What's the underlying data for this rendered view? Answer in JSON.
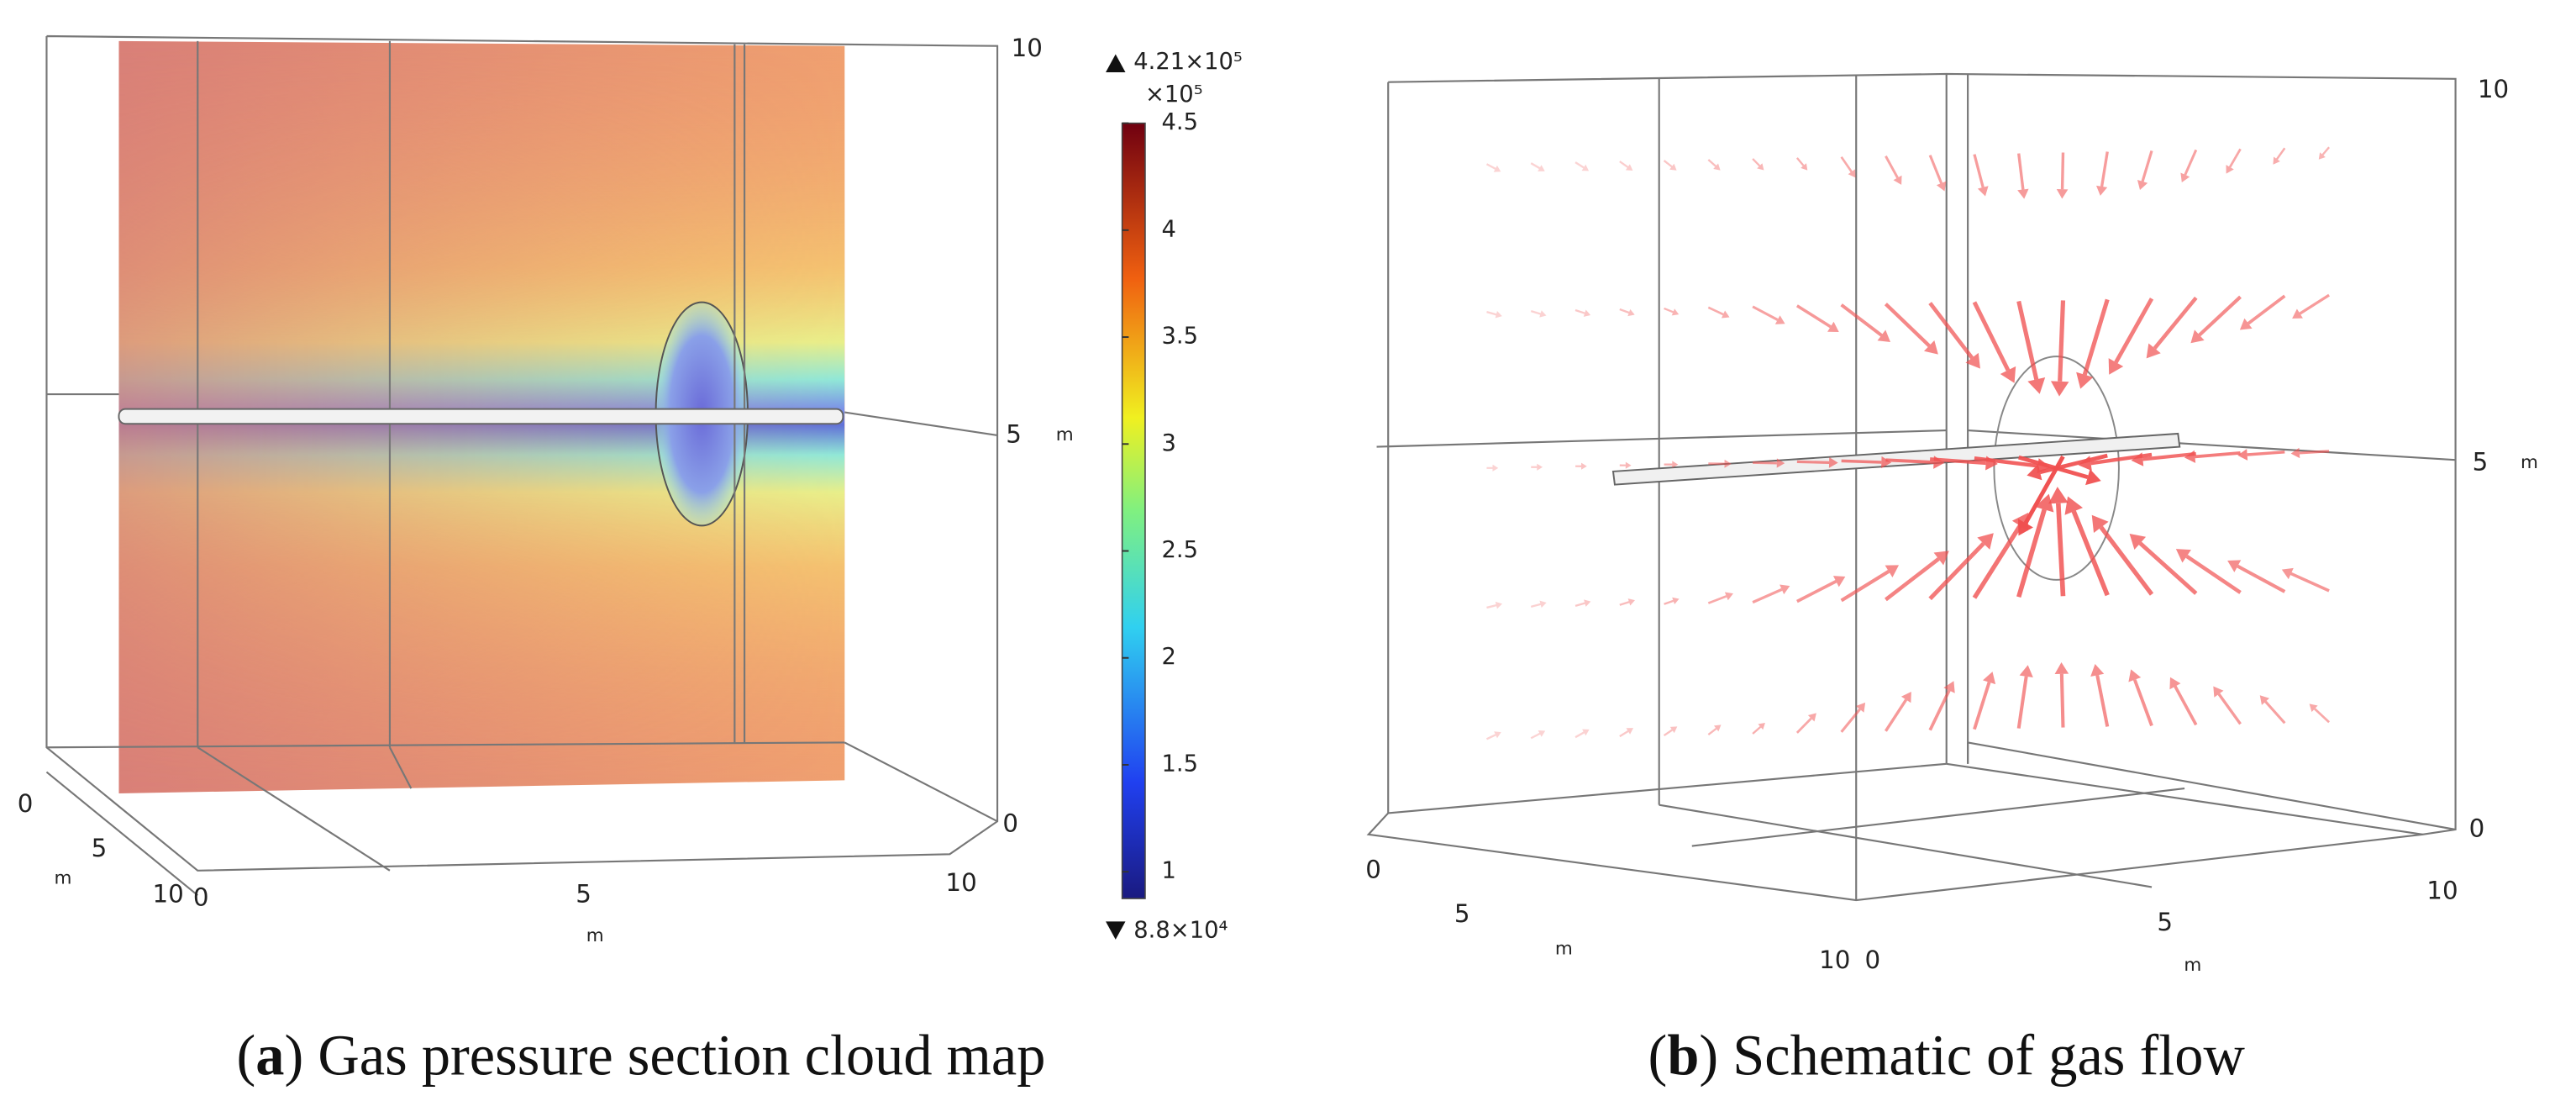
{
  "panels": [
    {
      "caption": {
        "prefix": "(",
        "label": "a",
        "suffix": ") Gas pressure section cloud map"
      },
      "axes": {
        "vertical": {
          "ticks": [
            10,
            5,
            0
          ],
          "unit": "m"
        },
        "depth": {
          "ticks": [
            0,
            5,
            10
          ],
          "unit": "m"
        },
        "width": {
          "ticks": [
            0,
            5,
            10
          ],
          "unit": "m"
        }
      },
      "colorbar": {
        "max_label": "4.21×10⁵",
        "multiplier": "×10⁵",
        "ticks": [
          4.5,
          4,
          3.5,
          3,
          2.5,
          2,
          1.5,
          1
        ],
        "min_label": "8.8×10⁴"
      }
    },
    {
      "caption": {
        "prefix": "(",
        "label": "b",
        "suffix": ") Schematic of gas flow"
      },
      "axes": {
        "vertical": {
          "ticks": [
            10,
            5,
            0
          ],
          "unit": "m"
        },
        "depth": {
          "ticks": [
            0,
            5,
            10
          ],
          "unit": "m"
        },
        "width": {
          "ticks": [
            0,
            5,
            10
          ],
          "unit": "m"
        }
      }
    }
  ]
}
